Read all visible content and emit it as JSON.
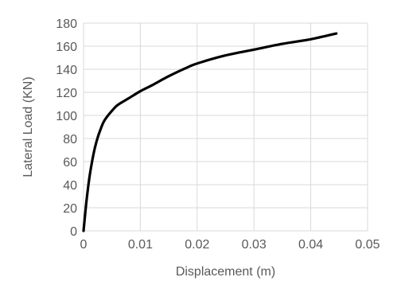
{
  "chart_data": {
    "type": "line",
    "title": "",
    "xlabel": "Displacement (m)",
    "ylabel": "Lateral Load (KN)",
    "xlim": [
      0,
      0.05
    ],
    "ylim": [
      0,
      180
    ],
    "x_ticks": [
      0,
      0.01,
      0.02,
      0.03,
      0.04,
      0.05
    ],
    "x_tick_labels": [
      "0",
      "0.01",
      "0.02",
      "0.03",
      "0.04",
      "0.05"
    ],
    "y_ticks": [
      0,
      20,
      40,
      60,
      80,
      100,
      120,
      140,
      160,
      180
    ],
    "y_tick_labels": [
      "0",
      "20",
      "40",
      "60",
      "80",
      "100",
      "120",
      "140",
      "160",
      "180"
    ],
    "grid": true,
    "legend": "none",
    "line_color": "#000000",
    "grid_color": "#d9d9d9",
    "text_color": "#595959",
    "series": [
      {
        "x": [
          0,
          0.0005,
          0.001,
          0.0015,
          0.002,
          0.0025,
          0.003,
          0.0035,
          0.004,
          0.005,
          0.006,
          0.008,
          0.01,
          0.012,
          0.015,
          0.018,
          0.02,
          0.025,
          0.03,
          0.035,
          0.04,
          0.0445
        ],
        "y": [
          0,
          25,
          45,
          60,
          72,
          81,
          88,
          94,
          98,
          104,
          109,
          115,
          121,
          126,
          134,
          141,
          145,
          152,
          157,
          162,
          166,
          171
        ]
      }
    ]
  }
}
